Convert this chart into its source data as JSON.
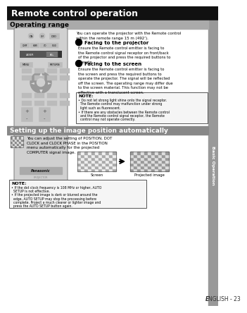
{
  "title": "Remote control operation",
  "title_bg": "#111111",
  "title_fg": "#ffffff",
  "section1_title": "Operating range",
  "section1_bg": "#aaaaaa",
  "section2_title": "Setting up the image position automatically",
  "section2_bg": "#888888",
  "section2_fg": "#ffffff",
  "page_bg": "#ffffff",
  "sidebar_text": "Basic Operation",
  "sidebar_bg": "#888888",
  "footer_text": "ENGLISH - 23",
  "intro_text": "You can operate the projector with the Remote control\nwithin the remote range 15 m (492’).",
  "bullet1_title": "Facing to the projector",
  "bullet1_body": "Ensure the Remote control emitter is facing to\nthe Remote control signal receptor on front/back\nof the projector and press the required buttons to\noperate.",
  "bullet2_title": "Facing to the screen",
  "bullet2_body": "Ensure the Remote control emitter is facing to\nthe screen and press the required buttons to\noperate the projector. The signal will be reflected\noff the screen. The operating range may differ due\nto the screen material. This function may not be\neffective with a translucent screen.",
  "note1_lines": [
    "NOTE:",
    "• Do not let strong light shine onto the signal receptor.",
    "  The Remote control may malfunction under strong",
    "  light such as fluorescent.",
    "• If there are any obstacles between the Remote control",
    "  and the Remote control signal receptor, the Remote",
    "  control may not operate correctly."
  ],
  "section2_text": "You can adjust the setting of POSITION, DOT\nCLOCK and CLOCK PHASE in the POSITION\nmenu automatically for the projected\nCOMPUTER signal image.",
  "screen_label": "Screen",
  "proj_label": "Projected image",
  "note2_lines": [
    "NOTE:",
    "• If the dot clock frequency is 108 MHz or higher, AUTO",
    "  SETUP is not effective.",
    "• If the projected image is dark or blurred around the",
    "  edge, AUTO SETUP may stop the processing before",
    "  complete. Project a much clearer or lighter image and",
    "  press the AUTO SETUP button again."
  ]
}
